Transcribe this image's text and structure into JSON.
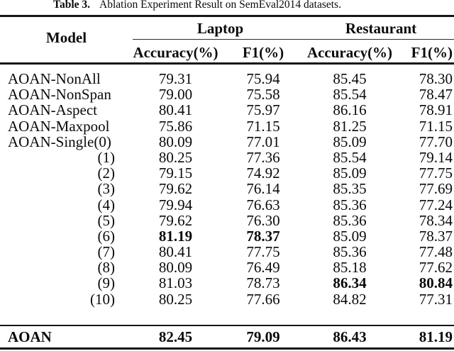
{
  "title": {
    "label": "Table 3.",
    "text": "Ablation Experiment Result on SemEval2014 datasets."
  },
  "table": {
    "model_header": "Model",
    "groups": [
      {
        "label": "Laptop"
      },
      {
        "label": "Restaurant"
      }
    ],
    "sub_headers": [
      "Accuracy(%)",
      "F1(%)",
      "Accuracy(%)",
      "F1(%)"
    ],
    "rows": [
      {
        "model": "AOAN-NonAll",
        "values": [
          "79.31",
          "75.94",
          "85.45",
          "78.30"
        ],
        "bold": [
          false,
          false,
          false,
          false
        ]
      },
      {
        "model": "AOAN-NonSpan",
        "values": [
          "79.00",
          "75.58",
          "85.54",
          "78.47"
        ],
        "bold": [
          false,
          false,
          false,
          false
        ]
      },
      {
        "model": "AOAN-Aspect",
        "values": [
          "80.41",
          "75.97",
          "86.16",
          "78.91"
        ],
        "bold": [
          false,
          false,
          false,
          false
        ]
      },
      {
        "model": "AOAN-Maxpool",
        "values": [
          "75.86",
          "71.15",
          "81.25",
          "71.15"
        ],
        "bold": [
          false,
          false,
          false,
          false
        ]
      },
      {
        "model": "AOAN-Single(0)",
        "values": [
          "80.09",
          "77.01",
          "85.09",
          "77.70"
        ],
        "bold": [
          false,
          false,
          false,
          false
        ]
      },
      {
        "model": "(1)",
        "values": [
          "80.25",
          "77.36",
          "85.54",
          "79.14"
        ],
        "bold": [
          false,
          false,
          false,
          false
        ]
      },
      {
        "model": "(2)",
        "values": [
          "79.15",
          "74.92",
          "85.09",
          "77.75"
        ],
        "bold": [
          false,
          false,
          false,
          false
        ]
      },
      {
        "model": "(3)",
        "values": [
          "79.62",
          "76.14",
          "85.35",
          "77.69"
        ],
        "bold": [
          false,
          false,
          false,
          false
        ]
      },
      {
        "model": "(4)",
        "values": [
          "79.94",
          "76.63",
          "85.36",
          "77.24"
        ],
        "bold": [
          false,
          false,
          false,
          false
        ]
      },
      {
        "model": "(5)",
        "values": [
          "79.62",
          "76.30",
          "85.36",
          "78.34"
        ],
        "bold": [
          false,
          false,
          false,
          false
        ]
      },
      {
        "model": "(6)",
        "values": [
          "81.19",
          "78.37",
          "85.09",
          "78.37"
        ],
        "bold": [
          true,
          true,
          false,
          false
        ]
      },
      {
        "model": "(7)",
        "values": [
          "80.41",
          "77.75",
          "85.36",
          "77.48"
        ],
        "bold": [
          false,
          false,
          false,
          false
        ]
      },
      {
        "model": "(8)",
        "values": [
          "80.09",
          "76.49",
          "85.18",
          "77.62"
        ],
        "bold": [
          false,
          false,
          false,
          false
        ]
      },
      {
        "model": "(9)",
        "values": [
          "81.03",
          "78.73",
          "86.34",
          "80.84"
        ],
        "bold": [
          false,
          false,
          true,
          true
        ]
      },
      {
        "model": "(10)",
        "values": [
          "80.25",
          "77.66",
          "84.82",
          "77.31"
        ],
        "bold": [
          false,
          false,
          false,
          false
        ]
      }
    ],
    "footer": {
      "model": "AOAN",
      "values": [
        "82.45",
        "79.09",
        "86.43",
        "81.19"
      ]
    }
  }
}
